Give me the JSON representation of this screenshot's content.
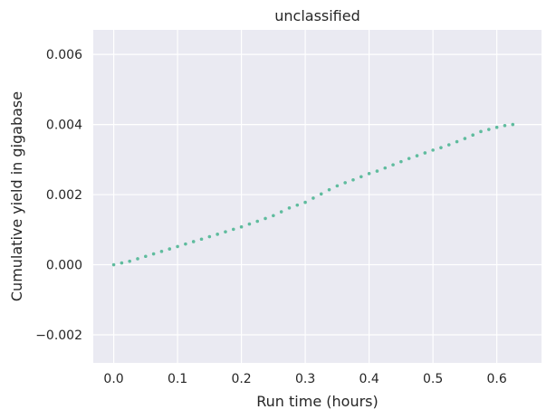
{
  "chart_data": {
    "type": "scatter",
    "title": "unclassified",
    "xlabel": "Run time (hours)",
    "ylabel": "Cumulative yield in gigabase",
    "xlim": [
      -0.032,
      0.67
    ],
    "ylim": [
      -0.0028,
      0.0067
    ],
    "xticks": [
      0.0,
      0.1,
      0.2,
      0.3,
      0.4,
      0.5,
      0.6
    ],
    "xtick_labels": [
      "0.0",
      "0.1",
      "0.2",
      "0.3",
      "0.4",
      "0.5",
      "0.6"
    ],
    "yticks": [
      -0.002,
      0.0,
      0.002,
      0.004,
      0.006
    ],
    "ytick_labels": [
      "−0.002",
      "0.000",
      "0.002",
      "0.004",
      "0.006"
    ],
    "grid": true,
    "background": "#EAEAF2",
    "grid_color": "#FFFFFF",
    "marker_color": "#5FBC9E",
    "series": [
      {
        "x": [
          0.0,
          0.0125,
          0.025,
          0.0375,
          0.05,
          0.0625,
          0.075,
          0.0875,
          0.1,
          0.1125,
          0.125,
          0.1375,
          0.15,
          0.1625,
          0.175,
          0.1875,
          0.2,
          0.2125,
          0.225,
          0.2375,
          0.25,
          0.2625,
          0.275,
          0.2875,
          0.3,
          0.3125,
          0.325,
          0.3375,
          0.35,
          0.3625,
          0.375,
          0.3875,
          0.4,
          0.4125,
          0.425,
          0.4375,
          0.45,
          0.4625,
          0.475,
          0.4875,
          0.5,
          0.5125,
          0.525,
          0.5375,
          0.55,
          0.5625,
          0.575,
          0.5875,
          0.6,
          0.6125,
          0.625
        ],
        "y": [
          0.0,
          5e-05,
          0.0001,
          0.00017,
          0.00024,
          0.00031,
          0.00038,
          0.00045,
          0.00052,
          0.00059,
          0.00066,
          0.00073,
          0.0008,
          0.00087,
          0.00094,
          0.00101,
          0.00108,
          0.00116,
          0.00124,
          0.00132,
          0.0014,
          0.00151,
          0.00162,
          0.0017,
          0.00178,
          0.0019,
          0.00202,
          0.00214,
          0.00225,
          0.00234,
          0.00242,
          0.00251,
          0.0026,
          0.00267,
          0.00276,
          0.00285,
          0.00294,
          0.00303,
          0.00311,
          0.00319,
          0.00327,
          0.00334,
          0.00342,
          0.00351,
          0.0036,
          0.0037,
          0.0038,
          0.00386,
          0.00392,
          0.00397,
          0.004
        ]
      }
    ]
  }
}
